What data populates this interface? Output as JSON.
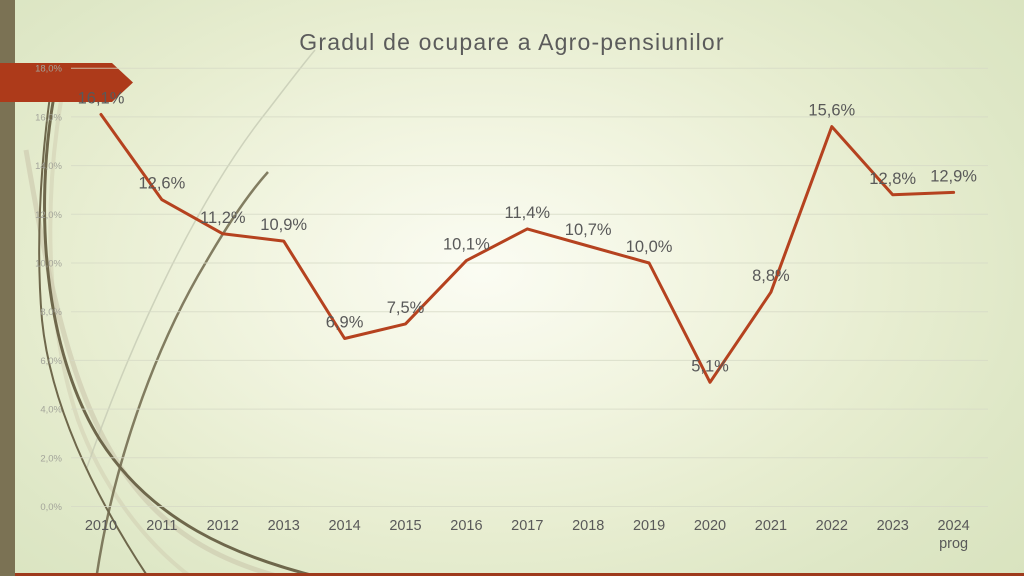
{
  "title": "Gradul de ocupare a Agro-pensiunilor",
  "chart_data": {
    "type": "line",
    "title": "Gradul de ocupare a Agro-pensiunilor",
    "categories": [
      "2010",
      "2011",
      "2012",
      "2013",
      "2014",
      "2015",
      "2016",
      "2017",
      "2018",
      "2019",
      "2020",
      "2021",
      "2022",
      "2023",
      "2024\nprog"
    ],
    "values": [
      16.1,
      12.6,
      11.2,
      10.9,
      6.9,
      7.5,
      10.1,
      11.4,
      10.7,
      10.0,
      5.1,
      8.8,
      15.6,
      12.8,
      12.9
    ],
    "data_labels": [
      "16,1%",
      "12,6%",
      "11,2%",
      "10,9%",
      "6,9%",
      "7,5%",
      "10,1%",
      "11,4%",
      "10,7%",
      "10,0%",
      "5,1%",
      "8,8%",
      "15,6%",
      "12,8%",
      "12,9%"
    ],
    "y_ticks": [
      "0,0%",
      "2,0%",
      "4,0%",
      "6,0%",
      "8,0%",
      "10,0%",
      "12,0%",
      "14,0%",
      "16,0%",
      "18,0%"
    ],
    "ylim": [
      0,
      18
    ],
    "xlabel": "",
    "ylabel": "",
    "grid": true,
    "legend": "none",
    "line_color": "#b5421f",
    "grid_color": "#d6dac6",
    "label_color": "#595959",
    "axis_label_color": "#a3a49a",
    "x_label_color": "#595959"
  },
  "theme": {
    "left_bar": "#7b7254",
    "arrow": "#ad3a1a",
    "bottom_stripe": "#9e3a1c",
    "curve_dark": "#6e674b",
    "curve_light": "#cfccb0",
    "curve_faint": "#c6cab4"
  }
}
